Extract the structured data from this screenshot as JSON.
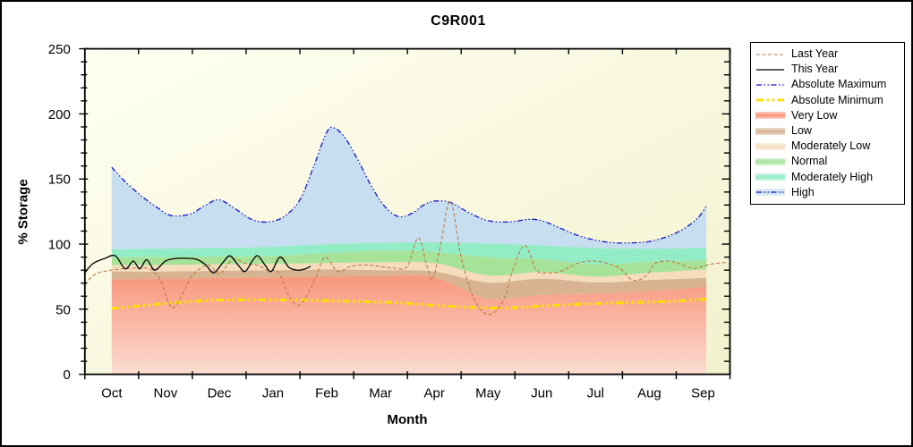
{
  "title": "C9R001",
  "axes": {
    "y_label": "% Storage",
    "x_label": "Month",
    "y_ticks": [
      0,
      50,
      100,
      150,
      200,
      250
    ],
    "y_minor_step": 10,
    "y_range": [
      0,
      250
    ],
    "x_tick_labels": [
      "Oct",
      "Nov",
      "Dec",
      "Jan",
      "Feb",
      "Mar",
      "Apr",
      "May",
      "Jun",
      "Jul",
      "Aug",
      "Sep"
    ]
  },
  "legend": {
    "items": [
      {
        "label": "Last Year",
        "type": "line",
        "ref": "last_year"
      },
      {
        "label": "This Year",
        "type": "line",
        "ref": "this_year"
      },
      {
        "label": "Absolute Maximum",
        "type": "line",
        "ref": "abs_max"
      },
      {
        "label": "Absolute Minimum",
        "type": "line",
        "ref": "abs_min"
      },
      {
        "label": "Very Low",
        "type": "band",
        "ref": "Very Low"
      },
      {
        "label": "Low",
        "type": "band",
        "ref": "Low"
      },
      {
        "label": "Moderately Low",
        "type": "band",
        "ref": "Moderately Low"
      },
      {
        "label": "Normal",
        "type": "band",
        "ref": "Normal"
      },
      {
        "label": "Moderately High",
        "type": "band",
        "ref": "Moderately High"
      },
      {
        "label": "High",
        "type": "band_line",
        "ref": "High",
        "line_ref": "abs_max"
      }
    ]
  },
  "colors": {
    "plot_bg_top": "#FFFFF2",
    "plot_bg_bottom": "#F2F2CE",
    "frame": "#000000"
  },
  "chart_data": {
    "type": "area",
    "title": "C9R001",
    "xlabel": "Month",
    "ylabel": "% Storage",
    "x_unit": "month index: 0 = Oct ... 11 = Sep (water year)",
    "ylim": [
      0,
      250
    ],
    "grid": false,
    "legend_position": "outside-right",
    "bands": {
      "x": [
        0,
        1,
        2,
        3,
        4,
        5,
        6,
        7,
        8,
        9,
        10,
        11,
        11.06
      ],
      "levels": [
        {
          "name": "Very Low",
          "color": "#F8957A",
          "color_bottom": "#FBDCD2",
          "top": [
            73,
            73.5,
            74,
            74.5,
            75,
            75.5,
            74.5,
            58,
            61,
            62,
            64,
            67,
            67.5
          ]
        },
        {
          "name": "Low",
          "color": "#D7B391",
          "top": [
            79,
            79,
            79.5,
            80,
            80.5,
            80,
            79,
            70.5,
            73.5,
            70.5,
            72.5,
            74,
            74.2
          ]
        },
        {
          "name": "Moderately Low",
          "color": "#F4DCBD",
          "top": [
            84,
            84,
            84.5,
            85,
            85.5,
            86,
            85.5,
            76,
            78.5,
            75,
            78,
            80.5,
            81
          ]
        },
        {
          "name": "Normal",
          "color": "#A7E299",
          "top": [
            90,
            90,
            90.5,
            91,
            93,
            95,
            94,
            90,
            88.5,
            84.5,
            86.5,
            87.5,
            88
          ]
        },
        {
          "name": "Moderately High",
          "color": "#92ECC6",
          "top": [
            96,
            96.5,
            97,
            98,
            100,
            101,
            101.5,
            100.5,
            99,
            97,
            96.5,
            97,
            97
          ]
        },
        {
          "name": "High",
          "color": "#C6DEEF",
          "top_from_series": "abs_max"
        }
      ]
    },
    "series": [
      {
        "id": "abs_min",
        "name": "Absolute Minimum",
        "color": "#FFE000",
        "width": 3,
        "dash": "8 3.5 2.5 3.5 2.5 3.5",
        "x": [
          0,
          0.5,
          1,
          1.5,
          2,
          2.5,
          3,
          3.5,
          4,
          4.5,
          5,
          5.5,
          6,
          6.5,
          7,
          7.5,
          8,
          8.5,
          9,
          9.5,
          10,
          10.5,
          11,
          11.06
        ],
        "y": [
          50.5,
          52.5,
          54.5,
          56,
          57,
          57.3,
          57.2,
          57,
          56.5,
          56,
          55.5,
          54.5,
          53,
          51.8,
          51,
          51.2,
          52.5,
          53.5,
          54.3,
          55,
          55.5,
          56.2,
          57.5,
          58
        ]
      },
      {
        "id": "abs_max",
        "name": "Absolute Maximum",
        "color": "#1414CC",
        "width": 1.3,
        "dash": "6 2.5 1.5 2.5 1.5 2.5",
        "x": [
          0,
          0.25,
          0.55,
          0.85,
          1.1,
          1.45,
          1.75,
          2.0,
          2.3,
          2.6,
          2.9,
          3.2,
          3.5,
          3.75,
          4.0,
          4.15,
          4.35,
          4.6,
          4.85,
          5.1,
          5.35,
          5.6,
          5.8,
          6.0,
          6.3,
          6.65,
          7.0,
          7.4,
          7.75,
          8.0,
          8.3,
          8.65,
          9.0,
          9.35,
          9.7,
          10.0,
          10.35,
          10.65,
          10.9,
          11.06
        ],
        "y": [
          159,
          148,
          137,
          128,
          122,
          123,
          130,
          134,
          127,
          119,
          117,
          121,
          134,
          159,
          186,
          189,
          181,
          163,
          143,
          128,
          121,
          124,
          130,
          133,
          132,
          124,
          118,
          117,
          119,
          118,
          113,
          107,
          103,
          101,
          101,
          102,
          106,
          112,
          120,
          129
        ]
      },
      {
        "id": "last_year",
        "name": "Last Year",
        "color": "#BF7B45",
        "width": 1.1,
        "dash": "4 2.5",
        "x": [
          -0.5,
          -0.3,
          0,
          0.4,
          0.7,
          0.9,
          1.05,
          1.15,
          1.3,
          1.5,
          1.8,
          2.0,
          2.25,
          2.5,
          2.7,
          2.9,
          3.1,
          3.3,
          3.45,
          3.6,
          3.8,
          3.97,
          4.2,
          4.45,
          4.7,
          4.97,
          5.25,
          5.5,
          5.7,
          5.85,
          5.97,
          6.12,
          6.3,
          6.5,
          6.7,
          6.9,
          7.1,
          7.3,
          7.45,
          7.68,
          7.9,
          8.12,
          8.35,
          8.65,
          8.9,
          9.15,
          9.45,
          9.7,
          9.95,
          10.1,
          10.35,
          10.55,
          10.8,
          11.0,
          11.2,
          11.45
        ],
        "y": [
          69,
          77,
          80,
          81.5,
          81,
          73,
          56,
          51,
          60,
          76,
          84,
          77,
          88,
          85,
          84,
          80,
          78,
          60,
          53,
          58,
          75,
          90,
          79,
          83,
          84,
          83,
          81.5,
          83,
          105,
          85,
          73,
          100,
          133,
          90,
          62,
          48,
          47,
          58,
          79,
          99,
          80,
          78,
          79,
          85,
          87,
          86,
          81.5,
          72,
          76,
          85,
          87,
          85,
          81.5,
          83,
          85,
          86
        ]
      },
      {
        "id": "this_year",
        "name": "This Year",
        "color": "#000000",
        "width": 1.3,
        "dash": "",
        "x": [
          -0.5,
          -0.35,
          -0.13,
          0.07,
          0.25,
          0.4,
          0.52,
          0.65,
          0.8,
          1.0,
          1.2,
          1.45,
          1.6,
          1.75,
          1.9,
          2.07,
          2.2,
          2.35,
          2.48,
          2.63,
          2.72,
          2.85,
          2.97,
          3.13,
          3.3,
          3.45,
          3.6,
          3.7
        ],
        "y": [
          78,
          85,
          89,
          91,
          81,
          87,
          81,
          88,
          80,
          87,
          89,
          89,
          88,
          84,
          78,
          86,
          91,
          84,
          79,
          88,
          91,
          84,
          79,
          90,
          82,
          80,
          81,
          83
        ]
      }
    ]
  }
}
